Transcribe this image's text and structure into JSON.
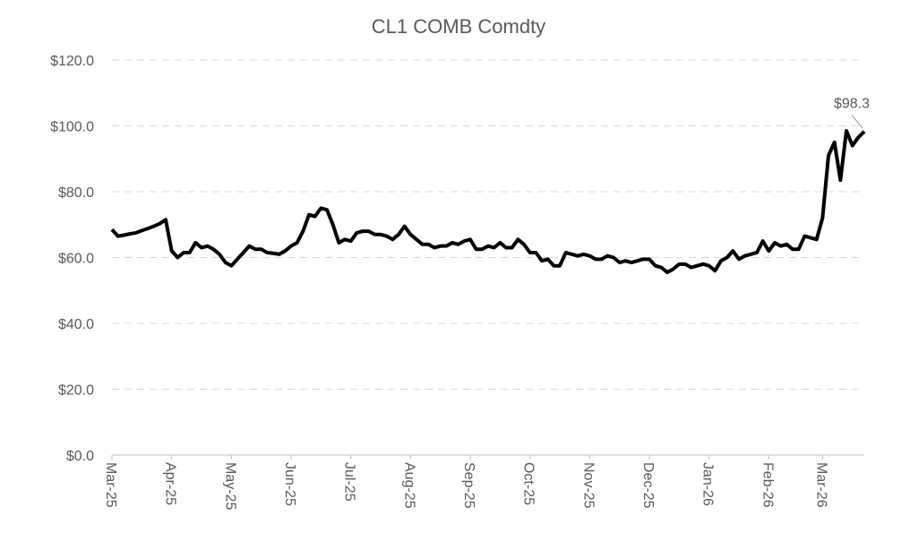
{
  "chart_data": {
    "type": "line",
    "title": "CL1 COMB Comdty",
    "categories": [
      "Mar-25",
      null,
      null,
      null,
      null,
      null,
      null,
      null,
      null,
      null,
      "Apr-25",
      null,
      null,
      null,
      null,
      null,
      null,
      null,
      null,
      null,
      "May-25",
      null,
      null,
      null,
      null,
      null,
      null,
      null,
      null,
      null,
      "Jun-25",
      null,
      null,
      null,
      null,
      null,
      null,
      null,
      null,
      null,
      "Jul-25",
      null,
      null,
      null,
      null,
      null,
      null,
      null,
      null,
      null,
      "Aug-25",
      null,
      null,
      null,
      null,
      null,
      null,
      null,
      null,
      null,
      "Sep-25",
      null,
      null,
      null,
      null,
      null,
      null,
      null,
      null,
      null,
      "Oct-25",
      null,
      null,
      null,
      null,
      null,
      null,
      null,
      null,
      null,
      "Nov-25",
      null,
      null,
      null,
      null,
      null,
      null,
      null,
      null,
      null,
      "Dec-25",
      null,
      null,
      null,
      null,
      null,
      null,
      null,
      null,
      null,
      "Jan-26",
      null,
      null,
      null,
      null,
      null,
      null,
      null,
      null,
      null,
      "Feb-26",
      null,
      null,
      null,
      null,
      null,
      null,
      null,
      null,
      "Mar-26",
      null,
      null,
      null,
      null,
      null,
      null,
      null
    ],
    "series": [
      {
        "name": "CL1 COMB Comdty",
        "color": "#000000",
        "values": [
          68.5,
          66.5,
          66.8,
          67.2,
          67.5,
          68.2,
          68.8,
          69.5,
          70.3,
          71.5,
          62.0,
          60.0,
          61.5,
          61.5,
          64.5,
          63.0,
          63.5,
          62.5,
          61.0,
          58.5,
          57.5,
          59.5,
          61.5,
          63.5,
          62.5,
          62.5,
          61.5,
          61.3,
          61.0,
          62.0,
          63.5,
          64.5,
          68.0,
          73.0,
          72.5,
          75.0,
          74.5,
          70.0,
          64.5,
          65.5,
          65.0,
          67.5,
          68.0,
          68.0,
          67.0,
          67.0,
          66.5,
          65.5,
          67.0,
          69.5,
          67.0,
          65.5,
          64.0,
          64.0,
          63.0,
          63.5,
          63.5,
          64.5,
          64.0,
          65.0,
          65.5,
          62.5,
          62.5,
          63.5,
          63.0,
          64.5,
          63.0,
          63.0,
          65.5,
          64.0,
          61.5,
          61.5,
          59.0,
          59.5,
          57.5,
          57.5,
          61.5,
          61.0,
          60.5,
          61.0,
          60.5,
          59.5,
          59.5,
          60.5,
          60.0,
          58.5,
          59.0,
          58.5,
          59.0,
          59.5,
          59.5,
          57.5,
          57.0,
          55.5,
          56.5,
          58.0,
          58.0,
          57.0,
          57.5,
          58.0,
          57.5,
          56.0,
          59.0,
          60.0,
          62.0,
          59.5,
          60.5,
          61.0,
          61.5,
          65.0,
          62.0,
          64.5,
          63.5,
          64.0,
          62.5,
          62.5,
          66.5,
          66.0,
          65.5,
          72.0,
          91.0,
          95.0,
          83.5,
          98.5,
          94.0,
          96.5,
          98.3
        ]
      }
    ],
    "value_labels": [
      null,
      null,
      null,
      null,
      null,
      null,
      null,
      null,
      null,
      null,
      null,
      null,
      null,
      null,
      null,
      null,
      null,
      null,
      null,
      null,
      null,
      null,
      null,
      null,
      null,
      null,
      null,
      null,
      null,
      null,
      null,
      null,
      null,
      null,
      null,
      null,
      null,
      null,
      null,
      null,
      null,
      null,
      null,
      null,
      null,
      null,
      null,
      null,
      null,
      null,
      null,
      null,
      null,
      null,
      null,
      null,
      null,
      null,
      null,
      null,
      null,
      null,
      null,
      null,
      null,
      null,
      null,
      null,
      null,
      null,
      null,
      null,
      null,
      null,
      null,
      null,
      null,
      null,
      null,
      null,
      null,
      null,
      null,
      null,
      null,
      null,
      null,
      null,
      null,
      null,
      null,
      null,
      null,
      null,
      null,
      null,
      null,
      null,
      null,
      null,
      null,
      null,
      null,
      null,
      null,
      null,
      null,
      null,
      null,
      null,
      null,
      null,
      null,
      null,
      null,
      null,
      null,
      null,
      null,
      null,
      null,
      null,
      null,
      null,
      null,
      null,
      "$98.3"
    ],
    "ylim": [
      0,
      120
    ],
    "yticks": [
      {
        "value": 0,
        "label": "$0.0"
      },
      {
        "value": 20,
        "label": "$20.0"
      },
      {
        "value": 40,
        "label": "$40.0"
      },
      {
        "value": 60,
        "label": "$60.0"
      },
      {
        "value": 80,
        "label": "$80.0"
      },
      {
        "value": 100,
        "label": "$100.0"
      },
      {
        "value": 120,
        "label": "$120.0"
      }
    ],
    "grid": true
  }
}
